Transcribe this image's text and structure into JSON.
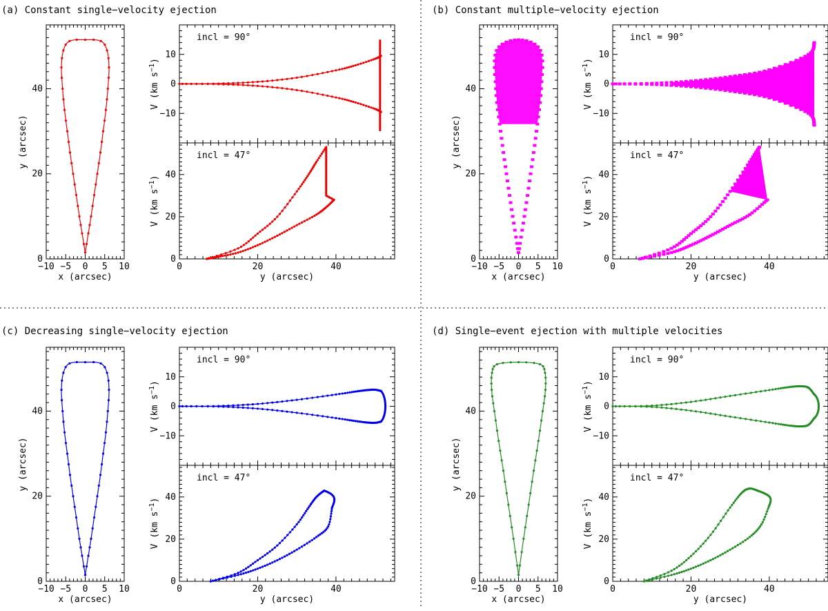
{
  "panels": [
    {
      "id": "a",
      "title": "(a) Constant single−velocity ejection",
      "color": "#ee0000",
      "style": "single",
      "band": "clip"
    },
    {
      "id": "b",
      "title": "(b) Constant multiple−velocity ejection",
      "color": "#ff00ff",
      "style": "multi",
      "band": "full"
    },
    {
      "id": "c",
      "title": "(c) Decreasing single−velocity ejection",
      "color": "#0000ee",
      "style": "single",
      "band": "loop"
    },
    {
      "id": "d",
      "title": "(d) Single−event ejection with multiple velocities",
      "color": "#228b22",
      "style": "single",
      "band": "loop"
    }
  ],
  "labels": {
    "shape_xlabel": "x (arcsec)",
    "shape_ylabel": "y (arcsec)",
    "pv_xlabel": "y (arcsec)",
    "pv_ylabel_main": "V (km s",
    "pv_ylabel_sup": "−1",
    "pv_ylabel_close": ")",
    "incl_90": "incl = 90°",
    "incl_47": "incl = 47°"
  },
  "chart_data": [
    {
      "type": "line",
      "panel": "a",
      "subplot": "shape",
      "xlabel": "x (arcsec)",
      "ylabel": "y (arcsec)",
      "xlim": [
        -10,
        10
      ],
      "ylim": [
        0,
        55
      ],
      "xticks": [
        -10,
        -5,
        0,
        5,
        10
      ],
      "yticks": [
        0,
        20,
        40
      ],
      "x": [
        0,
        0.8,
        1.5,
        2.3,
        3.1,
        3.9,
        4.6,
        5.3,
        5.8,
        6.1,
        5.6,
        4.0,
        0,
        -4.0,
        -5.6,
        -6.1,
        -5.8,
        -5.3,
        -4.6,
        -3.9,
        -3.1,
        -2.3,
        -1.5,
        -0.8,
        0
      ],
      "y": [
        1.5,
        6,
        10,
        15,
        20,
        25,
        30,
        35,
        40,
        45,
        49,
        51.2,
        51.5,
        51.2,
        49,
        45,
        40,
        35,
        30,
        25,
        20,
        15,
        10,
        6,
        1.5
      ]
    },
    {
      "type": "line",
      "panel": "a",
      "subplot": "pv90",
      "title": "incl = 90°",
      "ylabel": "V (km s−1)",
      "xlim": [
        0,
        55
      ],
      "ylim": [
        -20,
        20
      ],
      "yticks": [
        -10,
        0,
        10
      ],
      "series": [
        {
          "name": "upper",
          "x": [
            0,
            10,
            20,
            30,
            40,
            45,
            50,
            51.5
          ],
          "y": [
            0,
            0.1,
            0.7,
            2.1,
            4.6,
            6.3,
            8.5,
            9.5
          ]
        },
        {
          "name": "lower",
          "x": [
            0,
            10,
            20,
            30,
            40,
            45,
            50,
            51.5
          ],
          "y": [
            0,
            -0.1,
            -0.7,
            -2.1,
            -4.6,
            -6.3,
            -8.5,
            -9.5
          ]
        }
      ],
      "annotation": "vertical band at y ≈ 51.5 spanning V ≈ −16 to 15"
    },
    {
      "type": "line",
      "panel": "a",
      "subplot": "pv47",
      "title": "incl = 47°",
      "xlabel": "y (arcsec)",
      "ylabel": "V (km s−1)",
      "xlim": [
        0,
        55
      ],
      "ylim": [
        0,
        55
      ],
      "xticks": [
        0,
        20,
        40
      ],
      "yticks": [
        0,
        20,
        40
      ],
      "series": [
        {
          "name": "upper",
          "x": [
            7,
            15,
            20,
            25,
            30,
            33,
            35,
            37.5
          ],
          "y": [
            0,
            5,
            12,
            20,
            32,
            40,
            46,
            53
          ]
        },
        {
          "name": "lower",
          "x": [
            7,
            10,
            15,
            20,
            25,
            30,
            35,
            37.5,
            39.5
          ],
          "y": [
            0,
            1,
            3,
            6.5,
            11,
            16,
            21,
            24.5,
            28
          ]
        }
      ]
    },
    {
      "type": "scatter",
      "panel": "b",
      "subplot": "shape",
      "xlabel": "x (arcsec)",
      "ylabel": "y (arcsec)",
      "xlim": [
        -10,
        10
      ],
      "ylim": [
        0,
        55
      ],
      "xticks": [
        -10,
        -5,
        0,
        5,
        10
      ],
      "yticks": [
        0,
        20,
        40
      ],
      "x": [
        0,
        1.5,
        3.1,
        4.6,
        5.8,
        5.6,
        0,
        -5.6,
        -5.8,
        -4.6,
        -3.1,
        -1.5,
        0
      ],
      "y": [
        1.5,
        10,
        20,
        30,
        40,
        49,
        51.5,
        49,
        40,
        30,
        20,
        10,
        1.5
      ]
    },
    {
      "type": "scatter",
      "panel": "b",
      "subplot": "pv90",
      "title": "incl = 90°",
      "ylabel": "V (km s−1)",
      "xlim": [
        0,
        55
      ],
      "ylim": [
        -20,
        20
      ],
      "yticks": [
        -10,
        0,
        10
      ],
      "series": [
        {
          "name": "upper",
          "x": [
            0,
            10,
            20,
            30,
            40,
            50,
            51.5
          ],
          "y": [
            0,
            0.2,
            1,
            2.5,
            4.8,
            10,
            14
          ]
        },
        {
          "name": "lower",
          "x": [
            0,
            10,
            20,
            30,
            40,
            50,
            51.5
          ],
          "y": [
            0,
            -0.2,
            -1,
            -2.5,
            -4.8,
            -10,
            -14
          ]
        }
      ]
    },
    {
      "type": "scatter",
      "panel": "b",
      "subplot": "pv47",
      "title": "incl = 47°",
      "xlabel": "y (arcsec)",
      "ylabel": "V (km s−1)",
      "xlim": [
        0,
        55
      ],
      "ylim": [
        0,
        55
      ],
      "xticks": [
        0,
        20,
        40
      ],
      "yticks": [
        0,
        20,
        40
      ],
      "series": [
        {
          "name": "upper",
          "x": [
            7,
            15,
            20,
            25,
            30,
            35,
            37.5
          ],
          "y": [
            0,
            5,
            12,
            20,
            32,
            46,
            53
          ]
        },
        {
          "name": "lower",
          "x": [
            7,
            15,
            20,
            25,
            30,
            35,
            39.5
          ],
          "y": [
            0,
            3,
            6.5,
            11,
            16,
            21,
            28
          ]
        }
      ]
    },
    {
      "type": "line",
      "panel": "c",
      "subplot": "shape",
      "xlabel": "x (arcsec)",
      "ylabel": "y (arcsec)",
      "xlim": [
        -10,
        10
      ],
      "ylim": [
        0,
        55
      ],
      "xticks": [
        -10,
        -5,
        0,
        5,
        10
      ],
      "yticks": [
        0,
        20,
        40
      ],
      "x": [
        0,
        0.8,
        1.5,
        2.3,
        3.1,
        3.9,
        4.6,
        5.3,
        5.8,
        6.1,
        5.6,
        4.0,
        0,
        -4.0,
        -5.6,
        -6.1,
        -5.8,
        -5.3,
        -4.6,
        -3.9,
        -3.1,
        -2.3,
        -1.5,
        -0.8,
        0
      ],
      "y": [
        1.5,
        6,
        10,
        15,
        20,
        25,
        30,
        35,
        40,
        45,
        49,
        51.2,
        51.5,
        51.2,
        49,
        45,
        40,
        35,
        30,
        25,
        20,
        15,
        10,
        6,
        1.5
      ]
    },
    {
      "type": "line",
      "panel": "c",
      "subplot": "pv90",
      "title": "incl = 90°",
      "ylabel": "V (km s−1)",
      "xlim": [
        0,
        55
      ],
      "ylim": [
        -20,
        20
      ],
      "yticks": [
        -10,
        0,
        10
      ],
      "series": [
        {
          "name": "upper",
          "x": [
            0,
            10,
            20,
            30,
            40,
            45,
            48,
            50,
            51.5
          ],
          "y": [
            0,
            0.1,
            0.8,
            2.2,
            4,
            5,
            5.5,
            5.6,
            5.2
          ]
        },
        {
          "name": "lower",
          "x": [
            0,
            10,
            20,
            30,
            40,
            45,
            48,
            50,
            51.5
          ],
          "y": [
            0,
            -0.1,
            -0.8,
            -2.2,
            -4,
            -5,
            -5.5,
            -5.6,
            -5.2
          ]
        }
      ]
    },
    {
      "type": "line",
      "panel": "c",
      "subplot": "pv47",
      "title": "incl = 47°",
      "xlabel": "y (arcsec)",
      "ylabel": "V (km s−1)",
      "xlim": [
        0,
        55
      ],
      "ylim": [
        0,
        55
      ],
      "xticks": [
        0,
        20,
        40
      ],
      "yticks": [
        0,
        20,
        40
      ],
      "series": [
        {
          "name": "upper",
          "x": [
            8,
            15,
            20,
            25,
            30,
            33,
            35,
            37
          ],
          "y": [
            0,
            4,
            10,
            17,
            27,
            35,
            40,
            43
          ]
        },
        {
          "name": "lower",
          "x": [
            8,
            15,
            20,
            25,
            30,
            35,
            38,
            39
          ],
          "y": [
            0,
            3,
            6,
            10,
            15,
            21,
            26,
            35
          ]
        }
      ]
    },
    {
      "type": "line",
      "panel": "d",
      "subplot": "shape",
      "xlabel": "x (arcsec)",
      "ylabel": "y (arcsec)",
      "xlim": [
        -10,
        10
      ],
      "ylim": [
        0,
        55
      ],
      "xticks": [
        -10,
        -5,
        0,
        5,
        10
      ],
      "yticks": [
        0,
        20,
        40
      ],
      "x": [
        0,
        1.3,
        2.6,
        3.9,
        5.1,
        6.2,
        6.9,
        6.8,
        5.5,
        0,
        -5.5,
        -6.8,
        -6.9,
        -6.2,
        -5.1,
        -3.9,
        -2.6,
        -1.3,
        0
      ],
      "y": [
        1.5,
        10,
        18,
        26,
        33,
        40,
        45,
        49,
        51,
        51.5,
        51,
        49,
        45,
        40,
        33,
        26,
        18,
        10,
        1.5
      ]
    },
    {
      "type": "line",
      "panel": "d",
      "subplot": "pv90",
      "title": "incl = 90°",
      "ylabel": "V (km s−1)",
      "xlim": [
        0,
        55
      ],
      "ylim": [
        -20,
        20
      ],
      "yticks": [
        -10,
        0,
        10
      ],
      "series": [
        {
          "name": "upper",
          "x": [
            0,
            10,
            20,
            30,
            40,
            45,
            48,
            50,
            51.5
          ],
          "y": [
            0,
            0.2,
            1.5,
            3.5,
            5.5,
            6.5,
            6.8,
            6.3,
            4
          ]
        },
        {
          "name": "lower",
          "x": [
            0,
            10,
            20,
            30,
            40,
            45,
            48,
            50,
            51.5
          ],
          "y": [
            0,
            -0.2,
            -1.5,
            -3.5,
            -5.5,
            -6.5,
            -6.8,
            -6.3,
            -4
          ]
        }
      ]
    },
    {
      "type": "line",
      "panel": "d",
      "subplot": "pv47",
      "title": "incl = 47°",
      "xlabel": "y (arcsec)",
      "ylabel": "V (km s−1)",
      "xlim": [
        0,
        55
      ],
      "ylim": [
        0,
        55
      ],
      "xticks": [
        0,
        20,
        40
      ],
      "yticks": [
        0,
        20,
        40
      ],
      "series": [
        {
          "name": "upper",
          "x": [
            8,
            15,
            20,
            25,
            30,
            33,
            35,
            37
          ],
          "y": [
            0,
            5,
            12,
            22,
            35,
            42,
            44,
            43
          ]
        },
        {
          "name": "lower",
          "x": [
            8,
            15,
            20,
            25,
            30,
            35,
            38,
            40
          ],
          "y": [
            0,
            3,
            6,
            10,
            15,
            21,
            27,
            36
          ]
        }
      ]
    }
  ]
}
